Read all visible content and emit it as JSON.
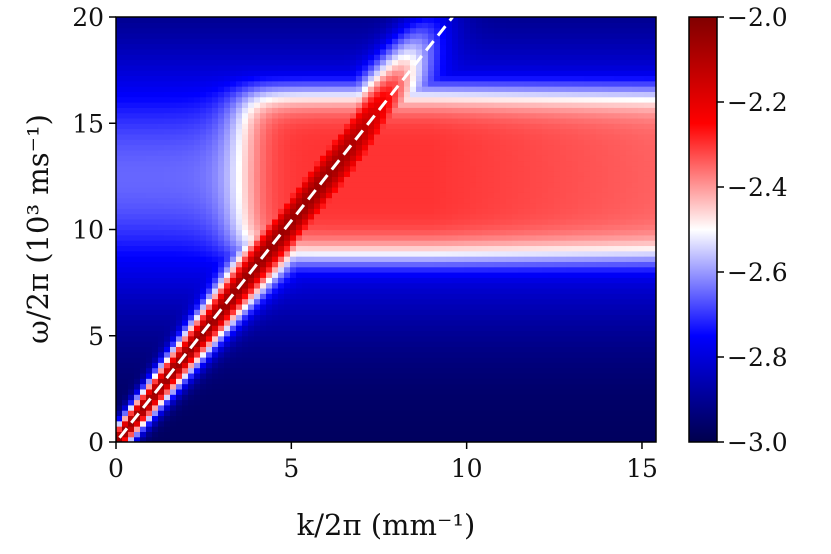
{
  "chart_data": {
    "type": "heatmap",
    "title": "",
    "xlabel": "k/2π (mm⁻¹)",
    "ylabel": "ω/2π (10³ ms⁻¹)",
    "xlim": [
      0,
      15.4
    ],
    "ylim": [
      0,
      20
    ],
    "x_ticks": [
      {
        "value": 0,
        "label": "0"
      },
      {
        "value": 5,
        "label": "5"
      },
      {
        "value": 10,
        "label": "10"
      },
      {
        "value": 15,
        "label": "15"
      }
    ],
    "y_ticks": [
      {
        "value": 0,
        "label": "0"
      },
      {
        "value": 5,
        "label": "5"
      },
      {
        "value": 10,
        "label": "10"
      },
      {
        "value": 15,
        "label": "15"
      },
      {
        "value": 20,
        "label": "20"
      }
    ],
    "colorbar": {
      "colormap": "seismic",
      "range": [
        -3.0,
        -2.0
      ],
      "ticks": [
        {
          "value": -2.0,
          "label": "−2.0"
        },
        {
          "value": -2.2,
          "label": "−2.2"
        },
        {
          "value": -2.4,
          "label": "−2.4"
        },
        {
          "value": -2.6,
          "label": "−2.6"
        },
        {
          "value": -2.8,
          "label": "−2.8"
        },
        {
          "value": -3.0,
          "label": "−3.0"
        }
      ]
    },
    "features": {
      "linear_branch_slope": 2.08,
      "band_center": 12.6,
      "band_half_width": 4.0,
      "band_start_k": 3.6,
      "band_peak_value": -2.3,
      "branch_peak_value": -2.05
    },
    "overlay_line": {
      "style": "dashed",
      "color": "#ffffff",
      "x": [
        0.1,
        9.6
      ],
      "y": [
        0.2,
        20
      ]
    }
  }
}
